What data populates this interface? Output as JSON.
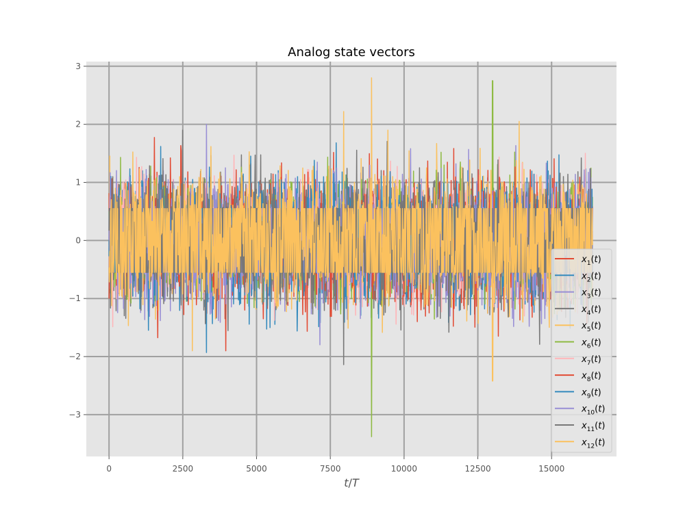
{
  "chart_data": {
    "type": "line",
    "title": "Analog state vectors",
    "xlabel_base": "t",
    "xlabel_sep": "/",
    "xlabel_den": "T",
    "ylabel": "",
    "xlim": [
      -770,
      17200
    ],
    "ylim": [
      -3.72,
      3.08
    ],
    "x_range": [
      0,
      16384
    ],
    "grid": true,
    "legend_position": "lower-right",
    "xticks": [
      0,
      2500,
      5000,
      7500,
      10000,
      12500,
      15000
    ],
    "xtick_labels": [
      "0",
      "2500",
      "5000",
      "7500",
      "10000",
      "12500",
      "15000"
    ],
    "yticks": [
      -3,
      -2,
      -1,
      0,
      1,
      2,
      3
    ],
    "ytick_labels": [
      "−3",
      "−2",
      "−1",
      "0",
      "1",
      "2",
      "3"
    ],
    "colors": {
      "background": "#e5e5e5",
      "grid": "#a0a0a0",
      "axis_text": "#555555"
    },
    "series": [
      {
        "base": "x",
        "sub": "1",
        "suffix": "(t)",
        "color": "#E24A33"
      },
      {
        "base": "x",
        "sub": "2",
        "suffix": "(t)",
        "color": "#348ABD"
      },
      {
        "base": "x",
        "sub": "3",
        "suffix": "(t)",
        "color": "#988ED5"
      },
      {
        "base": "x",
        "sub": "4",
        "suffix": "(t)",
        "color": "#777777"
      },
      {
        "base": "x",
        "sub": "5",
        "suffix": "(t)",
        "color": "#FBC15E"
      },
      {
        "base": "x",
        "sub": "6",
        "suffix": "(t)",
        "color": "#8EBA42"
      },
      {
        "base": "x",
        "sub": "7",
        "suffix": "(t)",
        "color": "#FFB5B8"
      },
      {
        "base": "x",
        "sub": "8",
        "suffix": "(t)",
        "color": "#E24A33"
      },
      {
        "base": "x",
        "sub": "9",
        "suffix": "(t)",
        "color": "#348ABD"
      },
      {
        "base": "x",
        "sub": "10",
        "suffix": "(t)",
        "color": "#988ED5"
      },
      {
        "base": "x",
        "sub": "11",
        "suffix": "(t)",
        "color": "#777777"
      },
      {
        "base": "x",
        "sub": "12",
        "suffix": "(t)",
        "color": "#FBC15E"
      }
    ],
    "notable_extremes": [
      {
        "x": 8900,
        "y": 2.8,
        "series": "x12(t)"
      },
      {
        "x": 8900,
        "y": -3.38,
        "series": "x6(t)"
      },
      {
        "x": 13000,
        "y": 2.75,
        "series": "x6(t)"
      },
      {
        "x": 13000,
        "y": -2.42,
        "series": "x12(t)"
      },
      {
        "x": 7950,
        "y": 2.22,
        "series": "x12(t)"
      },
      {
        "x": 7950,
        "y": -2.14,
        "series": "x11(t)"
      },
      {
        "x": 13900,
        "y": 2.05,
        "series": "x12(t)"
      },
      {
        "x": 2500,
        "y": 1.9,
        "series": "x11(t)"
      },
      {
        "x": 3300,
        "y": 2.0,
        "series": "x10(t)"
      },
      {
        "x": 3300,
        "y": -1.93,
        "series": "x9(t)"
      }
    ]
  }
}
